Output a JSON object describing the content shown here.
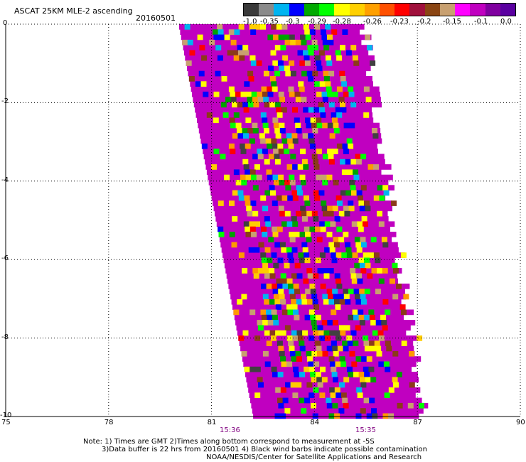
{
  "header": {
    "product": "ASCAT 25KM MLE-2 ascending",
    "date": "20160501"
  },
  "legend": {
    "colors": [
      "#3a3a3a",
      "#8a8a8a",
      "#00b4f0",
      "#0000ff",
      "#00aa00",
      "#00ff00",
      "#ffff00",
      "#ffd000",
      "#ffa000",
      "#ff5000",
      "#ff0000",
      "#a0103c",
      "#8b4513",
      "#c8a070",
      "#ff00ff",
      "#c000c0",
      "#8000a0",
      "#5a00a0"
    ],
    "ticks": [
      "-1.0",
      "-0.35",
      "-0.3",
      "-0.29",
      "-0.28",
      "-0.26",
      "-0.23",
      "-0.2",
      "-0.15",
      "-0.1",
      "0.0"
    ]
  },
  "axes": {
    "x_ticks": [
      "75",
      "78",
      "81",
      "84",
      "87",
      "90"
    ],
    "y_ticks": [
      "0",
      "-2",
      "-4",
      "-6",
      "-8",
      "-10"
    ]
  },
  "times": [
    "15:36",
    "15:35"
  ],
  "footer": {
    "line1": "Note: 1) Times are GMT 2)Times along bottom correspond to measurement at -5S",
    "line2": "3)Data buffer is 22 hrs from 20160501 4) Black wind barbs indicate possible contamination",
    "line3": "NOAA/NESDIS/Center for Satellite Applications and Research"
  },
  "palette": {
    "swath": "#c000c0",
    "blue": "#0000ff",
    "green": "#00a000",
    "lime": "#00ff00",
    "yellow": "#ffff00",
    "gold": "#ffcc00",
    "orange": "#ff9900",
    "red": "#ff0000",
    "brown": "#8b3a1a",
    "tan": "#c8a070",
    "cyan": "#00b4f0",
    "dark": "#404040",
    "maroon": "#5a0a2a"
  }
}
